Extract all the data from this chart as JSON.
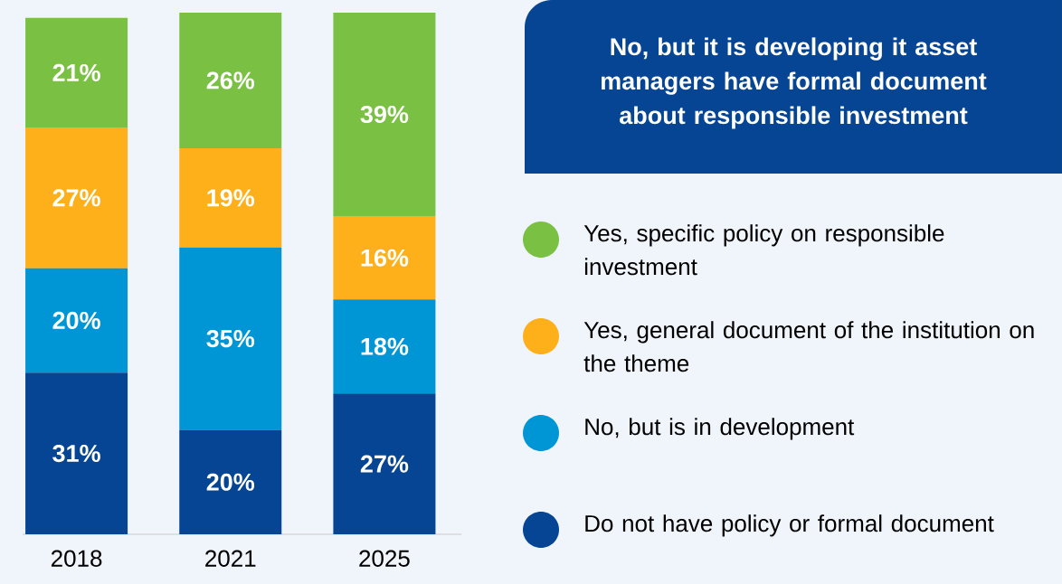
{
  "chart_data": {
    "type": "bar",
    "stacked": true,
    "legend": "right",
    "title": "No, but it is developing it asset managers have formal document about responsible investment",
    "categories": [
      "2018",
      "2021",
      "2025"
    ],
    "series": [
      {
        "name": "Do not have policy or formal document",
        "color": "#054593",
        "values": [
          31,
          20,
          27
        ],
        "value_labels": [
          "31%",
          "20%",
          "27%"
        ]
      },
      {
        "name": "No, but is in development",
        "color": "#0096d6",
        "values": [
          20,
          35,
          18
        ],
        "value_labels": [
          "20%",
          "35%",
          "18%"
        ]
      },
      {
        "name": "Yes, general document of the institution on the theme",
        "color": "#fdb01a",
        "values": [
          27,
          19,
          16
        ],
        "value_labels": [
          "27%",
          "19%",
          "16%"
        ]
      },
      {
        "name": "Yes, specific policy on responsible investment",
        "color": "#7ac143",
        "values": [
          21,
          26,
          39
        ],
        "value_labels": [
          "21%",
          "26%",
          "39%"
        ]
      }
    ]
  }
}
